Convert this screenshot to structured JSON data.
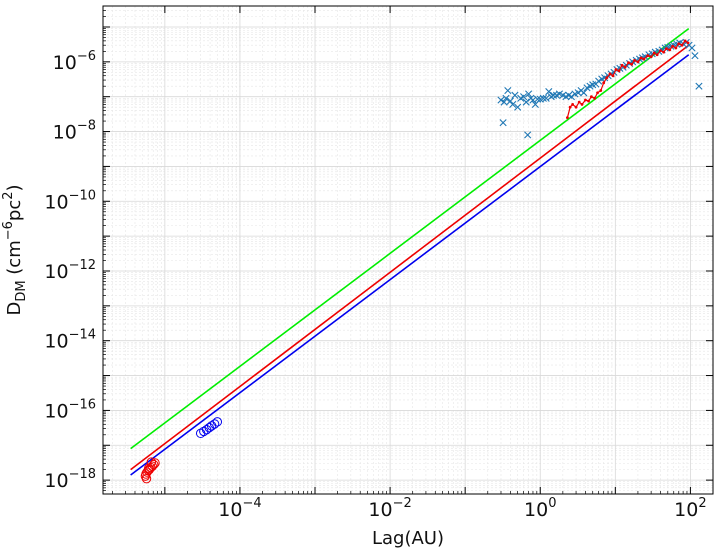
{
  "chart_data": {
    "type": "scatter",
    "xlabel": "Lag(AU)",
    "ylabel": {
      "main": "D",
      "sub": "DM",
      "open": " (cm",
      "sup1": "−6",
      "mid": "pc",
      "sup2": "2",
      "close": ")"
    },
    "x_scale": "log",
    "y_scale": "log",
    "xlim": [
      1.5e-06,
      200
    ],
    "ylim": [
      4e-19,
      4e-05
    ],
    "grid": true,
    "x_ticks": [
      {
        "value": 0.0001,
        "base": "10",
        "exp": "−4"
      },
      {
        "value": 0.01,
        "base": "10",
        "exp": "−2"
      },
      {
        "value": 1,
        "base": "10",
        "exp": "0"
      },
      {
        "value": 100,
        "base": "10",
        "exp": "2"
      }
    ],
    "y_ticks": [
      {
        "value": 1e-18,
        "base": "10",
        "exp": "−18"
      },
      {
        "value": 1e-16,
        "base": "10",
        "exp": "−16"
      },
      {
        "value": 1e-14,
        "base": "10",
        "exp": "−14"
      },
      {
        "value": 1e-12,
        "base": "10",
        "exp": "−12"
      },
      {
        "value": 1e-10,
        "base": "10",
        "exp": "−10"
      },
      {
        "value": 1e-08,
        "base": "10",
        "exp": "−8"
      },
      {
        "value": 1e-06,
        "base": "10",
        "exp": "−6"
      }
    ],
    "series": [
      {
        "kind": "line",
        "color": "#00ee00",
        "x": [
          3.5e-06,
          95
        ],
        "y": [
          8e-18,
          9e-06
        ]
      },
      {
        "kind": "line",
        "color": "#ee0000",
        "x": [
          3.5e-06,
          95
        ],
        "y": [
          2e-18,
          3e-06
        ]
      },
      {
        "kind": "line",
        "color": "#0000ee",
        "x": [
          3.5e-06,
          95
        ],
        "y": [
          1.4e-18,
          1.6e-06
        ]
      },
      {
        "kind": "circles",
        "color": "#ee0000",
        "x": [
          5.5e-06,
          5.6e-06,
          5.8e-06,
          6e-06,
          6.2e-06,
          6.5e-06,
          6.8e-06,
          7.1e-06,
          7.4e-06,
          5.7e-06,
          6.1e-06,
          6.6e-06
        ],
        "y": [
          1.3e-18,
          1.5e-18,
          1.7e-18,
          1.9e-18,
          2e-18,
          2.3e-18,
          2.5e-18,
          2.8e-18,
          3.1e-18,
          1.1e-18,
          2.2e-18,
          3.3e-18
        ]
      },
      {
        "kind": "circles",
        "color": "#0000ee",
        "x": [
          3e-05,
          3.3e-05,
          3.6e-05,
          3.9e-05,
          4.2e-05,
          4.6e-05,
          5e-05
        ],
        "y": [
          2.2e-17,
          2.5e-17,
          2.8e-17,
          3.2e-17,
          3.6e-17,
          4.1e-17,
          4.7e-17
        ]
      },
      {
        "kind": "crosses",
        "color": "#1f77b4",
        "x": [
          0.3,
          0.33,
          0.35,
          0.37,
          0.4,
          0.43,
          0.46,
          0.5,
          0.55,
          0.6,
          0.65,
          0.7,
          0.75,
          0.8,
          0.86,
          0.92,
          1.0,
          1.1,
          1.2,
          1.3,
          1.4,
          1.5,
          1.65,
          1.8,
          2.0,
          2.2,
          2.4,
          2.6,
          2.9,
          3.2,
          3.5,
          3.8,
          4.2,
          4.6,
          5.0,
          5.5,
          6.0,
          6.6,
          7.2,
          8.0,
          8.8,
          9.6,
          10.5,
          11.5,
          12.7,
          14,
          15.5,
          17,
          19,
          21,
          23,
          25,
          28,
          31,
          34,
          38,
          42,
          46,
          50,
          55,
          60,
          66,
          72,
          80,
          88,
          96,
          105,
          115,
          130,
          0.32,
          0.68
        ],
        "y": [
          8e-08,
          7e-08,
          9e-08,
          1.5e-07,
          7.5e-08,
          6e-08,
          1.1e-07,
          5e-08,
          9e-08,
          1e-07,
          7e-08,
          1.2e-07,
          9e-08,
          8e-08,
          6e-08,
          8.5e-08,
          8.5e-08,
          9e-08,
          9e-08,
          1.4e-07,
          1e-07,
          1.1e-07,
          1.1e-07,
          1.2e-07,
          1.1e-07,
          1e-07,
          1.1e-07,
          1e-07,
          1.2e-07,
          1.3e-07,
          1.5e-07,
          1.3e-07,
          1.8e-07,
          2e-07,
          2.2e-07,
          2.3e-07,
          2.8e-07,
          3.2e-07,
          3.5e-07,
          4e-07,
          4.5e-07,
          5e-07,
          6e-07,
          6.5e-07,
          7e-07,
          8e-07,
          9e-07,
          1e-06,
          1.1e-06,
          1.2e-06,
          1.3e-06,
          1.4e-06,
          1.6e-06,
          1.7e-06,
          1.9e-06,
          2e-06,
          2.2e-06,
          2.5e-06,
          2.6e-06,
          2.8e-06,
          3e-06,
          3.2e-06,
          3.5e-06,
          3.3e-06,
          3.6e-06,
          3e-06,
          2.5e-06,
          1.5e-06,
          2e-07,
          1.8e-08,
          8e-09
        ]
      },
      {
        "kind": "dotline",
        "color": "#ee0000",
        "x": [
          2.3,
          2.5,
          2.7,
          3.0,
          3.3,
          3.6,
          4.0,
          4.4,
          4.8,
          5.3,
          5.8,
          6.4,
          7.0,
          7.7,
          8.5,
          9.3,
          10.2,
          11.2,
          12.3,
          13.5,
          15,
          16.5,
          18,
          20,
          22,
          24,
          27,
          30,
          33,
          36,
          40,
          44,
          48,
          53,
          58,
          64,
          70,
          77,
          85,
          93
        ],
        "y": [
          2.5e-08,
          5e-08,
          6e-08,
          5e-08,
          7e-08,
          6e-08,
          8e-08,
          7.5e-08,
          1e-07,
          9e-08,
          1.3e-07,
          1.5e-07,
          2.5e-07,
          3.5e-07,
          4.5e-07,
          4e-07,
          6e-07,
          5.5e-07,
          8e-07,
          7e-07,
          9.5e-07,
          8.5e-07,
          1.1e-06,
          1e-06,
          1.3e-06,
          1.2e-06,
          1.5e-06,
          1.4e-06,
          1.8e-06,
          1.6e-06,
          2.1e-06,
          1.9e-06,
          2.4e-06,
          2.2e-06,
          2.8e-06,
          2.5e-06,
          3.3e-06,
          3e-06,
          4e-06,
          3.5e-06
        ]
      }
    ]
  }
}
